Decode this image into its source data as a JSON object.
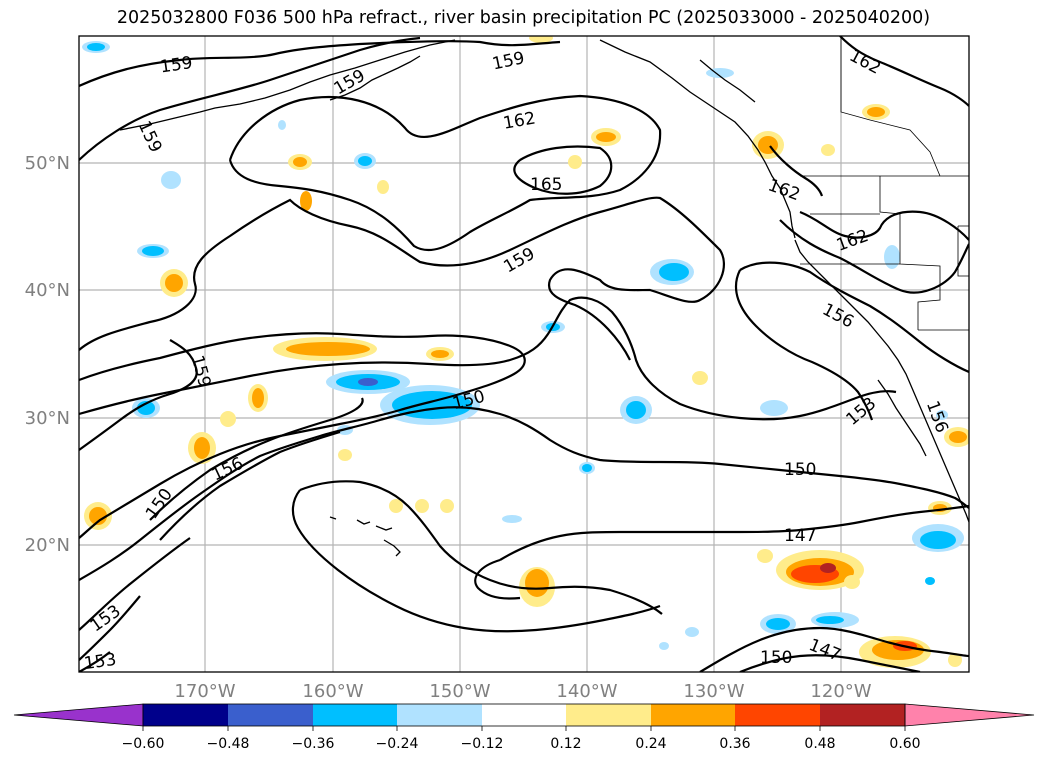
{
  "title": "2025032800 F036 500 hPa refract., river basin precipitation PC (2025033000 - 2025040200)",
  "map": {
    "lat_labels": [
      "50°N",
      "40°N",
      "30°N",
      "20°N"
    ],
    "lon_labels": [
      "170°W",
      "160°W",
      "150°W",
      "140°W",
      "130°W",
      "120°W"
    ],
    "contour_labels": [
      {
        "text": "159"
      },
      {
        "text": "159"
      },
      {
        "text": "159"
      },
      {
        "text": "159"
      },
      {
        "text": "162"
      },
      {
        "text": "162"
      },
      {
        "text": "165"
      },
      {
        "text": "159"
      },
      {
        "text": "162"
      },
      {
        "text": "162"
      },
      {
        "text": "156"
      },
      {
        "text": "159"
      },
      {
        "text": "150"
      },
      {
        "text": "156"
      },
      {
        "text": "150"
      },
      {
        "text": "153"
      },
      {
        "text": "153"
      },
      {
        "text": "150"
      },
      {
        "text": "147"
      },
      {
        "text": "156"
      },
      {
        "text": "153"
      },
      {
        "text": "150"
      },
      {
        "text": "147"
      }
    ]
  },
  "colorbar": {
    "ticks": [
      "−0.60",
      "−0.48",
      "−0.36",
      "−0.24",
      "−0.12",
      "0.12",
      "0.24",
      "0.36",
      "0.48",
      "0.60"
    ],
    "colors": [
      "#9932cc",
      "#00008b",
      "#3a5fcd",
      "#00bfff",
      "#b0e2ff",
      "#ffffff",
      "#ffec8b",
      "#ffa500",
      "#ff4500",
      "#b22222",
      "#ff82ab"
    ]
  }
}
